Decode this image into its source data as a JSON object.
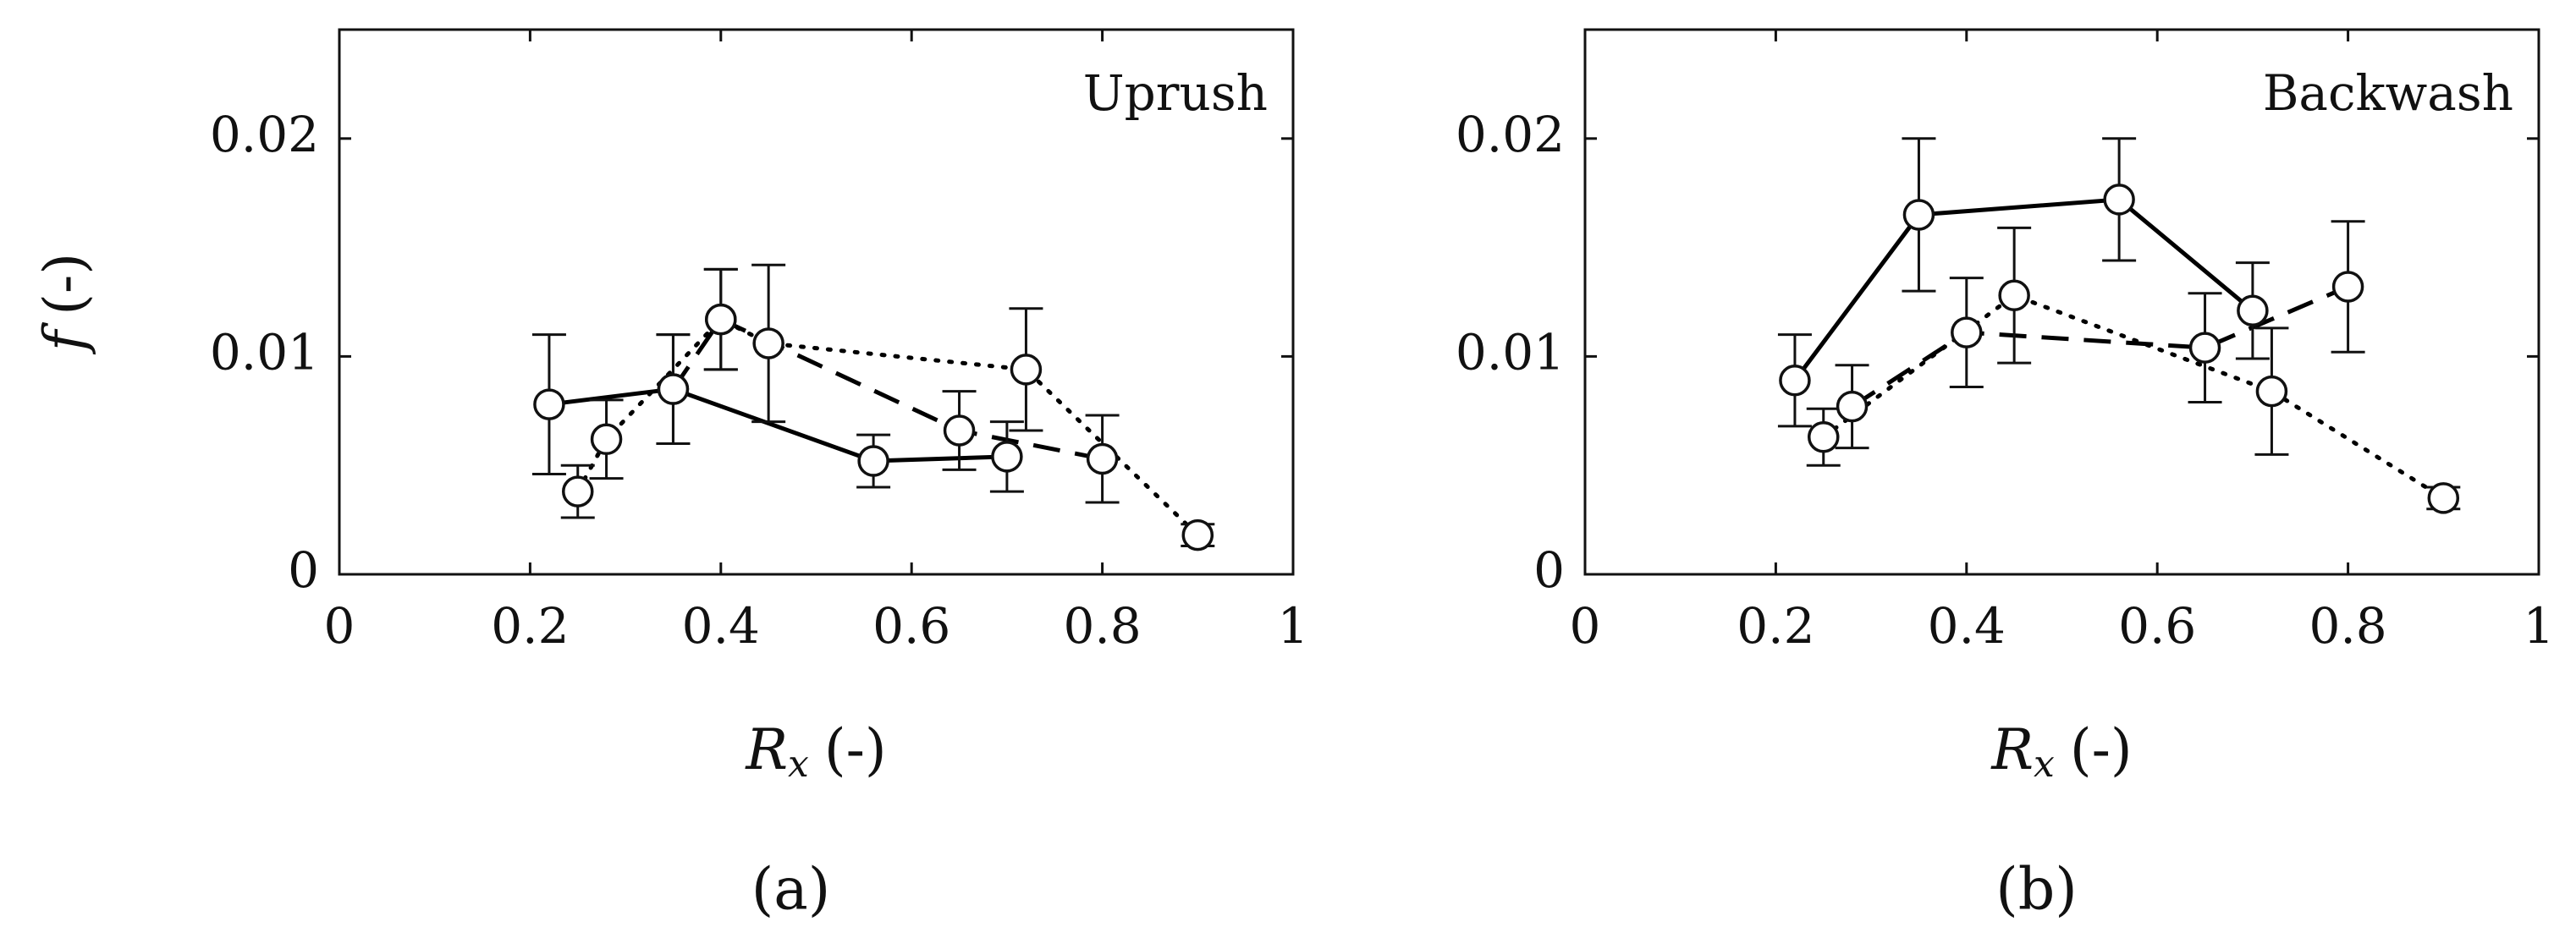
{
  "chart_data": [
    {
      "type": "line",
      "annotation": "Uprush",
      "xlabel": {
        "symbol": "R",
        "subscript": "x",
        "unit": "(-)"
      },
      "ylabel": {
        "symbol": "f",
        "unit": "(-)"
      },
      "caption": "(a)",
      "xlim": [
        0,
        1
      ],
      "xticks": [
        0,
        0.2,
        0.4,
        0.6,
        0.8,
        1
      ],
      "ylim": [
        0,
        0.025
      ],
      "yticks": [
        0,
        0.01,
        0.02
      ],
      "series": [
        {
          "line_style": "solid",
          "color": "#000000",
          "x": [
            0.22,
            0.35,
            0.56,
            0.7
          ],
          "values": [
            0.0078,
            0.0085,
            0.0052,
            0.0054
          ],
          "errors": [
            0.0032,
            0.0025,
            0.0012,
            0.0016
          ]
        },
        {
          "line_style": "dashed",
          "color": "#000000",
          "x": [
            0.35,
            0.4,
            0.65,
            0.8
          ],
          "values": [
            0.0085,
            0.0117,
            0.0066,
            0.0053
          ],
          "errors": [
            0.0025,
            0.0023,
            0.0018,
            0.002
          ]
        },
        {
          "line_style": "dotted",
          "color": "#000000",
          "x": [
            0.25,
            0.28,
            0.4,
            0.45,
            0.72,
            0.9
          ],
          "values": [
            0.0038,
            0.0062,
            0.0117,
            0.0106,
            0.0094,
            0.0018
          ],
          "errors": [
            0.0012,
            0.0018,
            0.0023,
            0.0036,
            0.0028,
            0.0005
          ]
        }
      ]
    },
    {
      "type": "line",
      "annotation": "Backwash",
      "xlabel": {
        "symbol": "R",
        "subscript": "x",
        "unit": "(-)"
      },
      "caption": "(b)",
      "xlim": [
        0,
        1
      ],
      "xticks": [
        0,
        0.2,
        0.4,
        0.6,
        0.8,
        1
      ],
      "ylim": [
        0,
        0.025
      ],
      "yticks": [
        0,
        0.01,
        0.02
      ],
      "series": [
        {
          "line_style": "solid",
          "color": "#000000",
          "x": [
            0.22,
            0.35,
            0.56,
            0.7
          ],
          "values": [
            0.0089,
            0.0165,
            0.0172,
            0.0121
          ],
          "errors": [
            0.0021,
            0.0035,
            0.0028,
            0.0022
          ]
        },
        {
          "line_style": "dashed",
          "color": "#000000",
          "x": [
            0.28,
            0.4,
            0.65,
            0.8
          ],
          "values": [
            0.0077,
            0.0111,
            0.0104,
            0.0132
          ],
          "errors": [
            0.0019,
            0.0025,
            0.0025,
            0.003
          ]
        },
        {
          "line_style": "dotted",
          "color": "#000000",
          "x": [
            0.25,
            0.45,
            0.72,
            0.9
          ],
          "values": [
            0.0063,
            0.0128,
            0.0084,
            0.0035
          ],
          "errors": [
            0.0013,
            0.0031,
            0.0029,
            0.0005
          ]
        }
      ]
    }
  ]
}
